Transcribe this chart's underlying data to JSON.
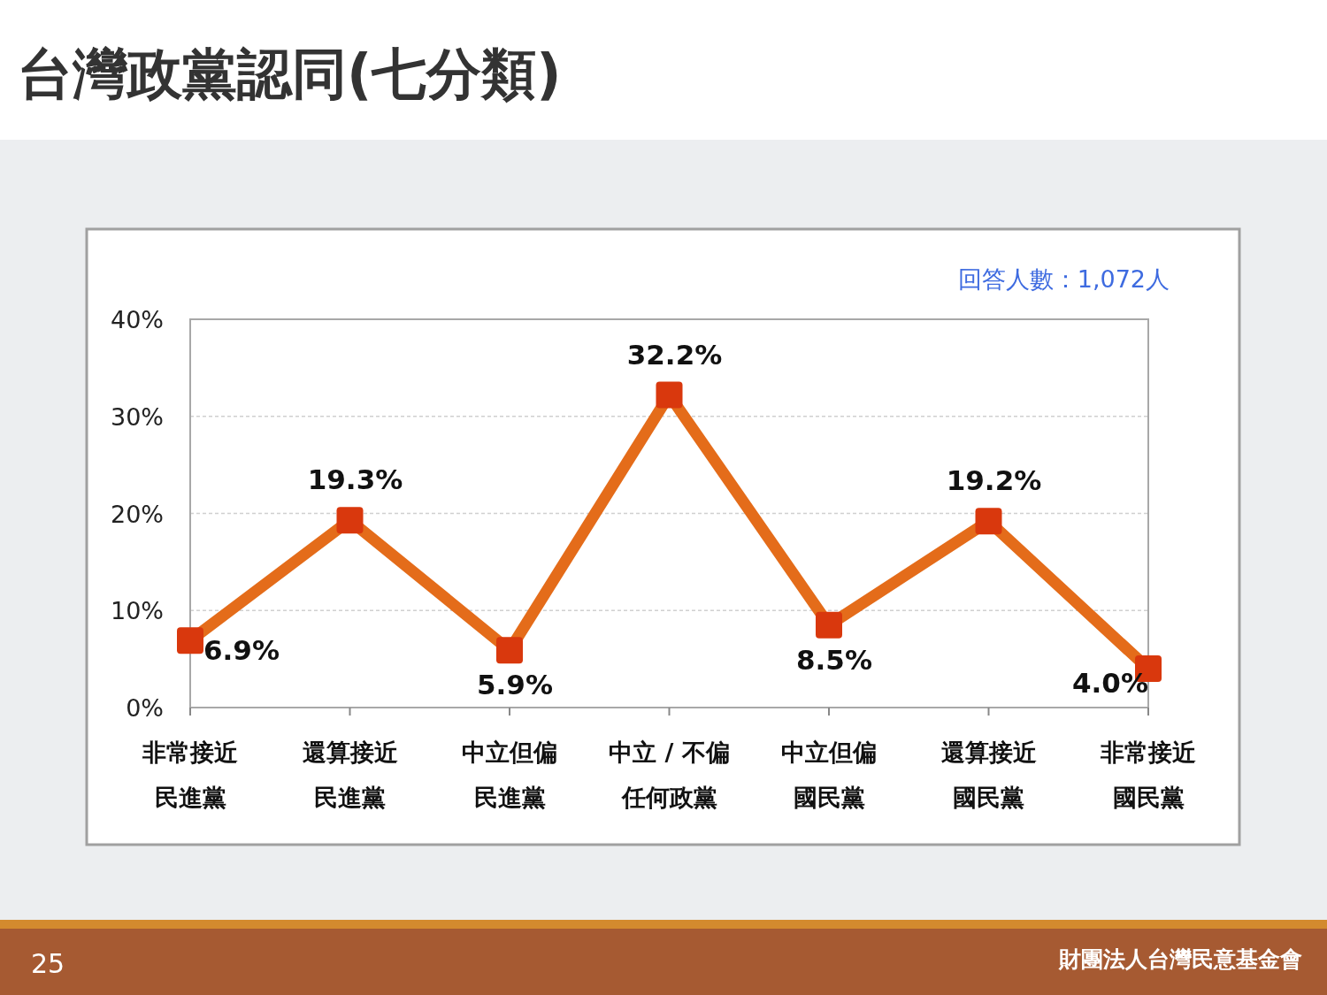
{
  "chart_data": {
    "type": "line",
    "title": "台灣政黨認同(七分類)",
    "annotations": [
      "回答人數：1,072人",
      "25",
      "財團法人台灣民意基金會"
    ],
    "categories": [
      "非常接近民進黨",
      "還算接近民進黨",
      "中立但偏民進黨",
      "中立 / 不偏任何政黨",
      "中立但偏國民黨",
      "還算接近國民黨",
      "非常接近國民黨"
    ],
    "series": [
      {
        "color": "#e46c1a",
        "values": [
          6.9,
          19.3,
          5.9,
          32.2,
          8.5,
          19.2,
          4.0
        ],
        "value_labels": [
          "6.9%",
          "19.3%",
          "5.9%",
          "32.2%",
          "8.5%",
          "19.2%",
          "4.0%"
        ]
      }
    ],
    "ylim": [
      0,
      40
    ],
    "yticks": [
      {
        "value": 0,
        "label": "0%"
      },
      {
        "value": 10,
        "label": "10%"
      },
      {
        "value": 20,
        "label": "20%"
      },
      {
        "value": 30,
        "label": "30%"
      },
      {
        "value": 40,
        "label": "40%"
      }
    ],
    "grid": "y",
    "marker": "square",
    "line_style": "solid"
  }
}
